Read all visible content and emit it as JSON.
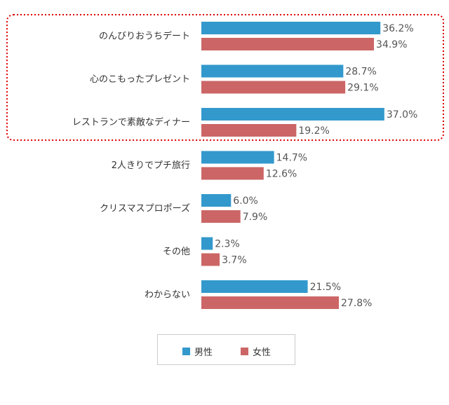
{
  "chart_data": {
    "type": "bar",
    "orientation": "horizontal",
    "categories": [
      "のんびりおうちデート",
      "心のこもったプレゼント",
      "レストランで素敵なディナー",
      "2人きりでプチ旅行",
      "クリスマスプロポーズ",
      "その他",
      "わからない"
    ],
    "series": [
      {
        "name": "男性",
        "color": "#3399cc",
        "values": [
          36.2,
          28.7,
          37.0,
          14.7,
          6.0,
          2.3,
          21.5
        ],
        "labels": [
          "36.2%",
          "28.7%",
          "37.0%",
          "14.7%",
          "6.0%",
          "2.3%",
          "21.5%"
        ]
      },
      {
        "name": "女性",
        "color": "#cc6666",
        "values": [
          34.9,
          29.1,
          19.2,
          12.6,
          7.9,
          3.7,
          27.8
        ],
        "labels": [
          "34.9%",
          "29.1%",
          "19.2%",
          "12.6%",
          "7.9%",
          "3.7%",
          "27.8%"
        ]
      }
    ],
    "xlim": [
      0,
      40
    ],
    "grid": false,
    "legend": "bottom",
    "highlight": {
      "categories": [
        0,
        1,
        2
      ],
      "style": "dotted",
      "color": "#dd0000"
    }
  }
}
